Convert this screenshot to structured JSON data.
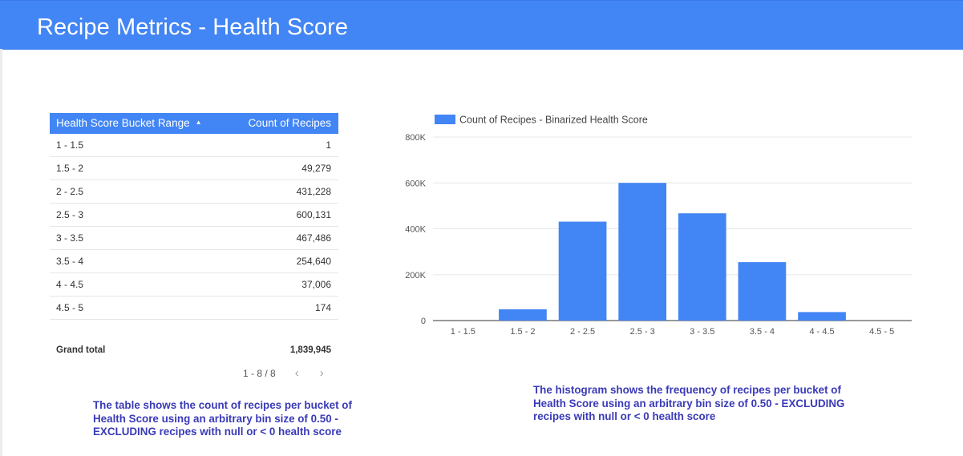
{
  "header": {
    "title": "Recipe Metrics - Health Score"
  },
  "table": {
    "col1_header": "Health Score Bucket Range",
    "col2_header": "Count of Recipes",
    "sort_indicator": "▲",
    "rows": [
      {
        "range": "1 - 1.5",
        "count": "1"
      },
      {
        "range": "1.5 - 2",
        "count": "49,279"
      },
      {
        "range": "2 - 2.5",
        "count": "431,228"
      },
      {
        "range": "2.5 - 3",
        "count": "600,131"
      },
      {
        "range": "3 - 3.5",
        "count": "467,486"
      },
      {
        "range": "3.5 - 4",
        "count": "254,640"
      },
      {
        "range": "4 - 4.5",
        "count": "37,006"
      },
      {
        "range": "4.5 - 5",
        "count": "174"
      }
    ],
    "grand_total_label": "Grand total",
    "grand_total_value": "1,839,945",
    "pagination": "1 - 8 / 8",
    "prev_icon": "‹",
    "next_icon": "›"
  },
  "captions": {
    "left": "The table shows the count of recipes per bucket of Health Score using an arbitrary bin size of 0.50 - EXCLUDING recipes with null or < 0 health score",
    "right": "The histogram shows the frequency of recipes per bucket of Health Score using an arbitrary bin size of 0.50 - EXCLUDING recipes with null or < 0 health score"
  },
  "colors": {
    "accent": "#4285f4",
    "caption": "#3a3ab8"
  },
  "chart_data": {
    "type": "bar",
    "categories": [
      "1 - 1.5",
      "1.5 - 2",
      "2 - 2.5",
      "2.5 - 3",
      "3 - 3.5",
      "3.5 - 4",
      "4 - 4.5",
      "4.5 - 5"
    ],
    "series": [
      {
        "name": "Count of Recipes - Binarized Health Score",
        "values": [
          1,
          49279,
          431228,
          600131,
          467486,
          254640,
          37006,
          174
        ]
      }
    ],
    "ylim": [
      0,
      800000
    ],
    "yticks": [
      0,
      200000,
      400000,
      600000,
      800000
    ],
    "ytick_labels": [
      "0",
      "200K",
      "400K",
      "600K",
      "800K"
    ],
    "grid": true,
    "legend": "top-left",
    "color": "#4285f4"
  }
}
